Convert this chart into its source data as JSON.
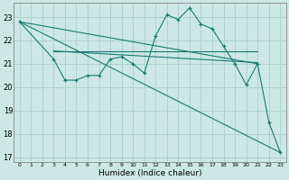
{
  "xlabel": "Humidex (Indice chaleur)",
  "bg_color": "#cce8e4",
  "grid_color": "#aad4cc",
  "line_color": "#1a7a6e",
  "xlim": [
    -0.5,
    23.5
  ],
  "ylim": [
    16.8,
    23.6
  ],
  "yticks": [
    17,
    18,
    19,
    20,
    21,
    22,
    23
  ],
  "xticks": [
    0,
    1,
    2,
    3,
    4,
    5,
    6,
    7,
    8,
    9,
    10,
    11,
    12,
    13,
    14,
    15,
    16,
    17,
    18,
    19,
    20,
    21,
    22,
    23
  ],
  "main_x": [
    0,
    3,
    4,
    5,
    6,
    7,
    8,
    9,
    10,
    11,
    12,
    13,
    14,
    15,
    16,
    17,
    18,
    19,
    20,
    21,
    22,
    23
  ],
  "main_y": [
    22.8,
    21.2,
    20.3,
    20.3,
    20.5,
    20.5,
    21.2,
    21.3,
    21.0,
    20.6,
    22.2,
    23.1,
    22.9,
    23.4,
    22.7,
    22.5,
    21.75,
    21.0,
    20.1,
    21.0,
    18.5,
    17.2
  ],
  "ref_lines": [
    {
      "x": [
        0,
        21
      ],
      "y": [
        22.8,
        21.0
      ]
    },
    {
      "x": [
        3,
        21
      ],
      "y": [
        21.55,
        21.05
      ]
    },
    {
      "x": [
        3,
        21
      ],
      "y": [
        21.55,
        21.55
      ]
    }
  ],
  "diag_line": {
    "x": [
      0,
      23
    ],
    "y": [
      22.8,
      17.2
    ]
  }
}
